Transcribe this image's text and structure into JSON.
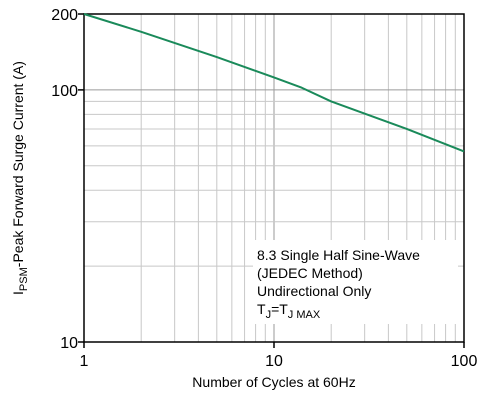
{
  "chart_data": {
    "type": "line",
    "title": "",
    "x_scale": "log",
    "y_scale": "log",
    "xlim": [
      1,
      100
    ],
    "ylim": [
      10,
      200
    ],
    "x_ticks": [
      1,
      10,
      100
    ],
    "x_tick_labels": [
      "1",
      "10",
      "100"
    ],
    "y_ticks": [
      10,
      100,
      200
    ],
    "y_tick_labels": [
      "10",
      "100",
      "200"
    ],
    "xlabel": "Number of Cycles at 60Hz",
    "ylabel": {
      "prefix": "I",
      "sub": "PSM",
      "suffix": "-Peak Forward Surge Current (A)"
    },
    "grid": true,
    "line_color": "#1a8a5a",
    "series": [
      {
        "x": [
          1,
          2,
          5,
          10,
          14,
          20,
          50,
          100
        ],
        "y": [
          200,
          170,
          135,
          112,
          102,
          90,
          70,
          57
        ]
      }
    ],
    "annotation": {
      "lines": [
        "8.3 Single Half Sine-Wave",
        "(JEDEC Method)",
        "Undirectional Only"
      ],
      "tj_line": {
        "a": "T",
        "a_sub": "J",
        "mid": "=T",
        "b_sub": "J MAX"
      }
    }
  }
}
